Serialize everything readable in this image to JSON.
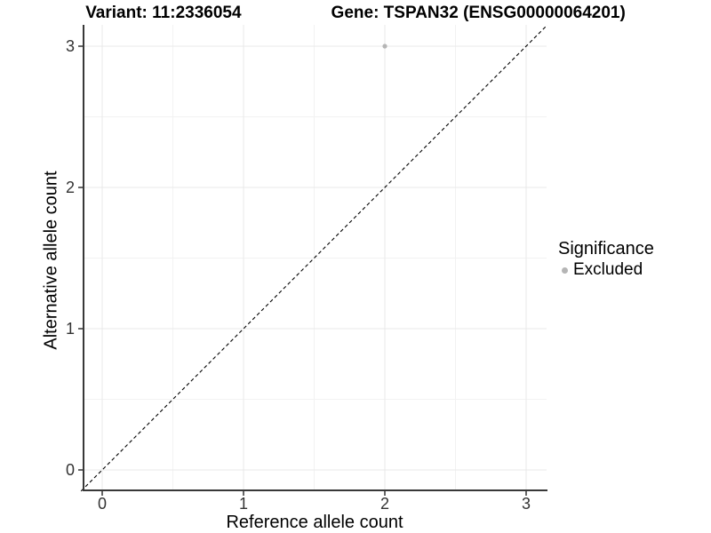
{
  "titles": {
    "variant": "Variant: 11:2336054",
    "gene": "Gene: TSPAN32 (ENSG00000064201)"
  },
  "chart_data": {
    "type": "scatter",
    "title_left": "Variant: 11:2336054",
    "title_right": "Gene: TSPAN32 (ENSG00000064201)",
    "xlabel": "Reference allele count",
    "ylabel": "Alternative allele count",
    "xlim": [
      -0.15,
      3.15
    ],
    "ylim": [
      -0.15,
      3.15
    ],
    "x_ticks": [
      0,
      1,
      2,
      3
    ],
    "y_ticks": [
      0,
      1,
      2,
      3
    ],
    "x_minor_ticks": [
      0.5,
      1.5,
      2.5
    ],
    "y_minor_ticks": [
      0.5,
      1.5,
      2.5
    ],
    "grid": "major+minor",
    "points": [
      {
        "x": 2,
        "y": 3,
        "series": "Excluded"
      }
    ],
    "identity_line": {
      "style": "dashed",
      "from": [
        -0.15,
        -0.15
      ],
      "to": [
        3.15,
        3.15
      ],
      "color": "#000000"
    },
    "legend": {
      "title": "Significance",
      "position": "right",
      "entries": [
        {
          "label": "Excluded",
          "color": "#b5b5b5",
          "marker": "circle"
        }
      ]
    },
    "colors": {
      "point": "#b5b5b5",
      "grid_major": "#e9e9e9",
      "grid_minor": "#f2f2f2",
      "axis_line": "#383838",
      "tick_mark": "#333333",
      "tick_text": "#333333"
    }
  }
}
